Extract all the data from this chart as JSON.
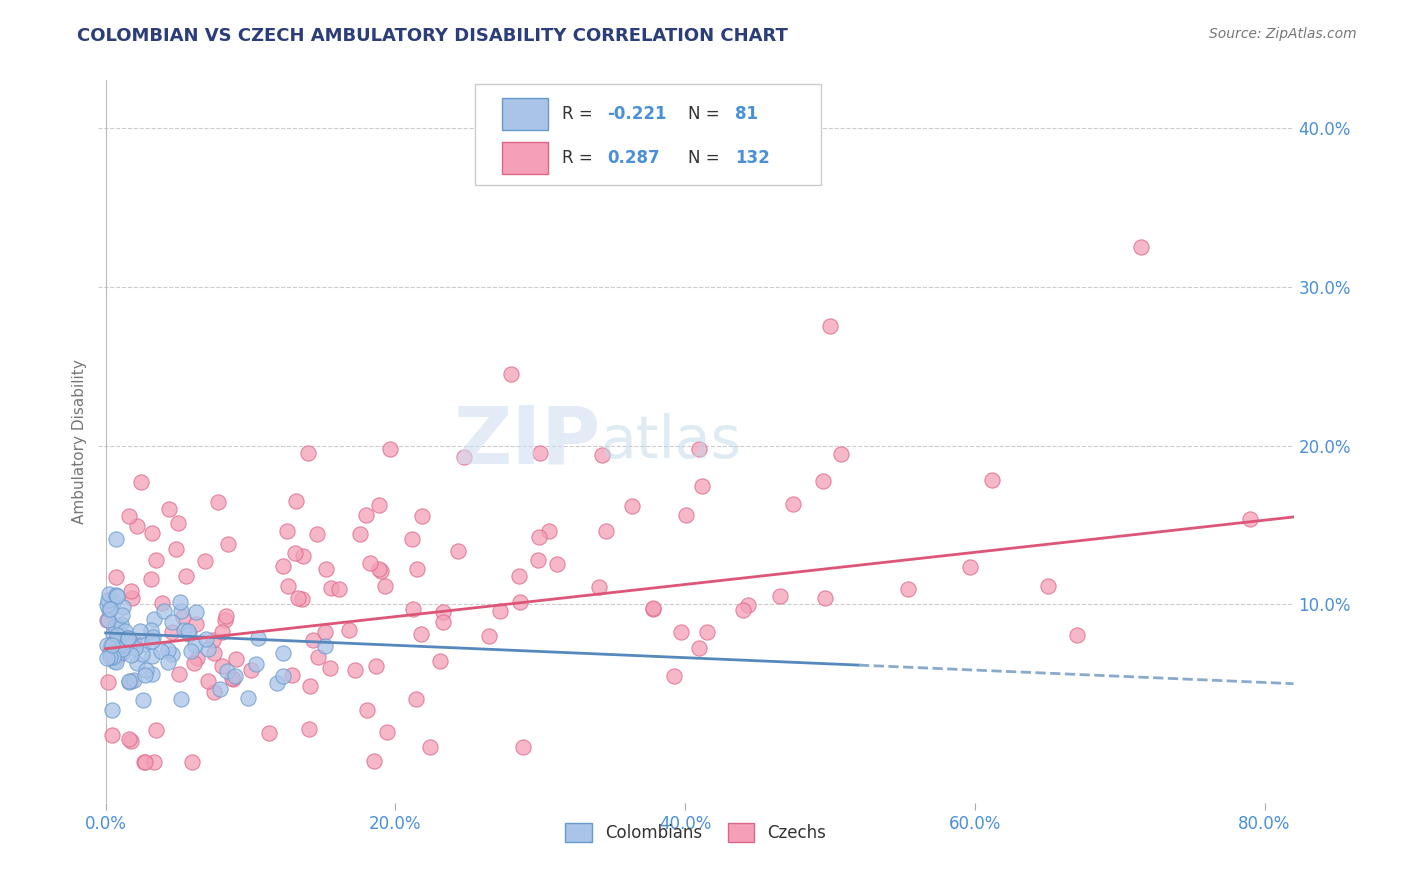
{
  "title": "COLOMBIAN VS CZECH AMBULATORY DISABILITY CORRELATION CHART",
  "source": "Source: ZipAtlas.com",
  "ylabel": "Ambulatory Disability",
  "xlabel_ticks": [
    "0.0%",
    "20.0%",
    "40.0%",
    "60.0%",
    "80.0%"
  ],
  "xlabel_vals": [
    0.0,
    0.2,
    0.4,
    0.6,
    0.8
  ],
  "ytick_labels": [
    "10.0%",
    "20.0%",
    "30.0%",
    "40.0%"
  ],
  "ytick_vals": [
    0.1,
    0.2,
    0.3,
    0.4
  ],
  "xlim": [
    -0.005,
    0.82
  ],
  "ylim": [
    -0.025,
    0.43
  ],
  "r_colombian": -0.221,
  "n_colombian": 81,
  "r_czech": 0.287,
  "n_czech": 132,
  "colombian_color": "#aac4e8",
  "colombian_edge": "#6699cc",
  "colombian_line_color": "#5588bb",
  "colombian_line_style": "-",
  "colombian_dash_color": "#88aacc",
  "czech_color": "#f4a0b8",
  "czech_edge": "#dd6688",
  "czech_line_color": "#dd5577",
  "watermark_zip": "ZIP",
  "watermark_atlas": "atlas",
  "background_color": "#ffffff",
  "grid_color": "#cccccc",
  "title_color": "#2c3e7a",
  "axis_label_color": "#777777",
  "tick_color": "#4a90d9",
  "legend_text_color": "#333333",
  "legend_value_color": "#4a90d9"
}
